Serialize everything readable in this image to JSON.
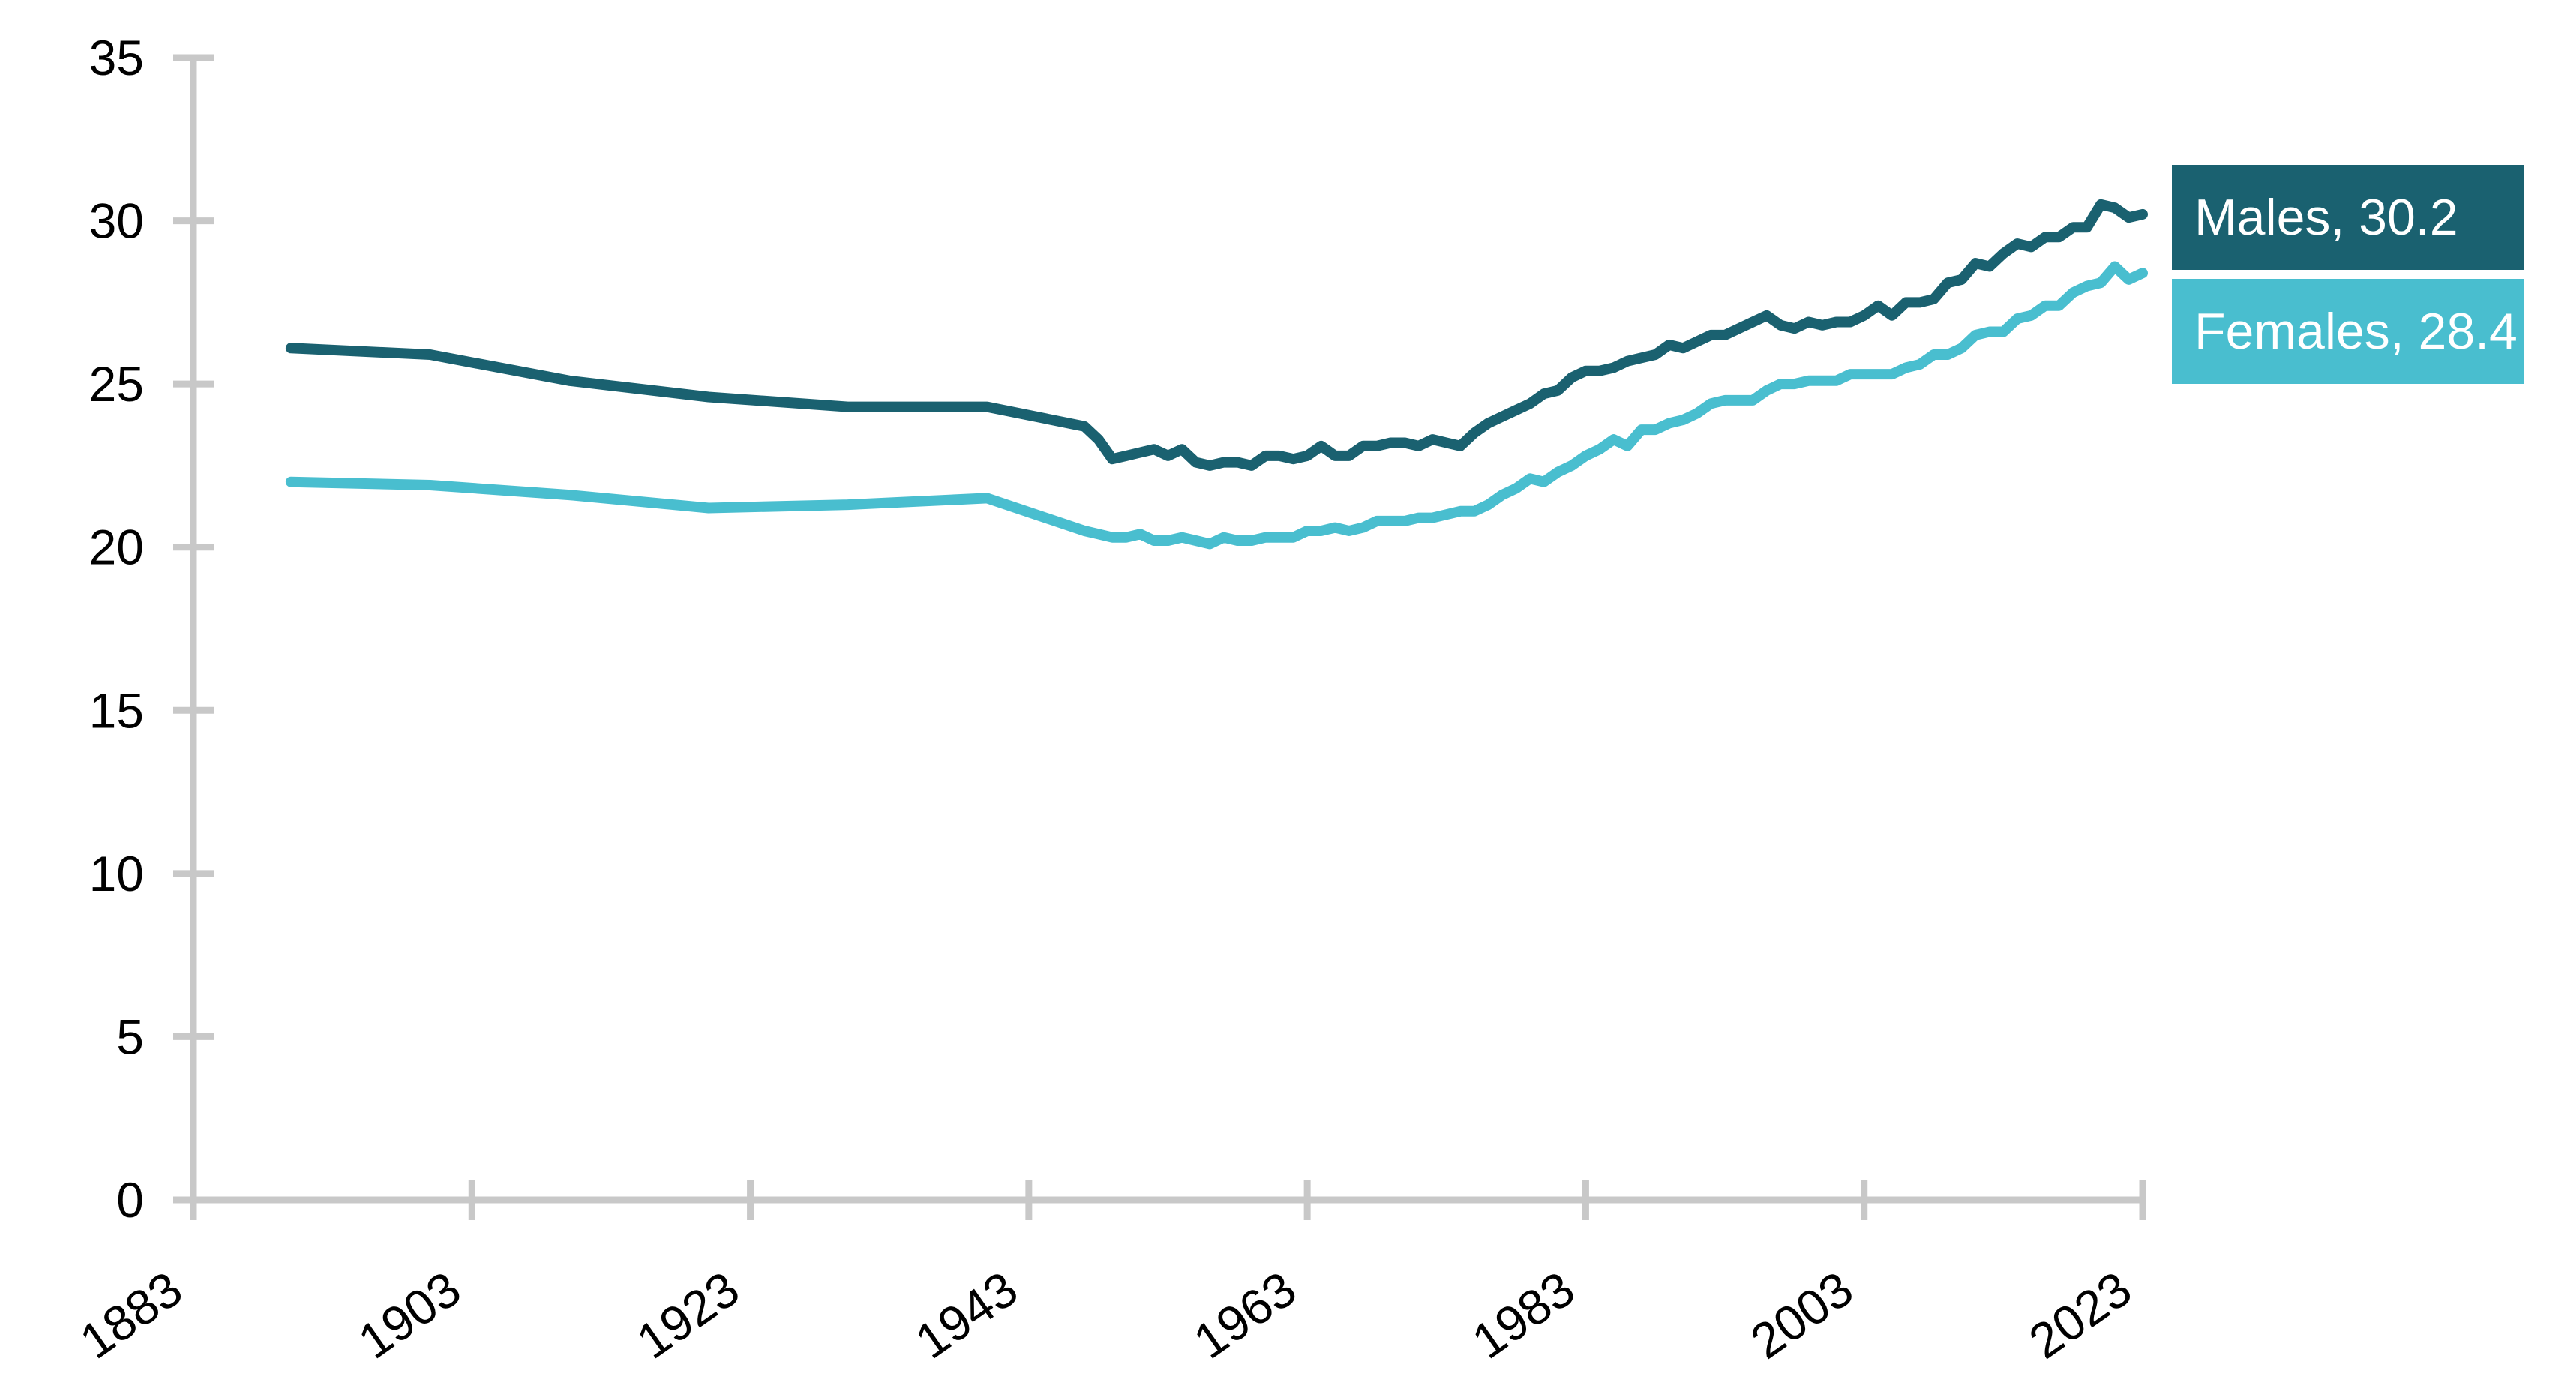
{
  "page": {
    "background_color": "#FFFFFF"
  },
  "chart_data": {
    "type": "line",
    "grid": false,
    "axis_color": "#C8C8C8",
    "tick_label_color": "#000000",
    "legend_position": "right-of-line-ends",
    "xlim": [
      1883,
      2023
    ],
    "ylim": [
      0,
      35
    ],
    "x_tick_labels": [
      "1883",
      "1903",
      "1923",
      "1943",
      "1963",
      "1983",
      "2003",
      "2023"
    ],
    "y_tick_labels": [
      "0",
      "5",
      "10",
      "15",
      "20",
      "25",
      "30",
      "35"
    ],
    "x": [
      1890,
      1900,
      1910,
      1920,
      1930,
      1940,
      1947,
      1948,
      1949,
      1950,
      1951,
      1952,
      1953,
      1954,
      1955,
      1956,
      1957,
      1958,
      1959,
      1960,
      1961,
      1962,
      1963,
      1964,
      1965,
      1966,
      1967,
      1968,
      1969,
      1970,
      1971,
      1972,
      1973,
      1974,
      1975,
      1976,
      1977,
      1978,
      1979,
      1980,
      1981,
      1982,
      1983,
      1984,
      1985,
      1986,
      1987,
      1988,
      1989,
      1990,
      1991,
      1992,
      1993,
      1994,
      1995,
      1996,
      1997,
      1998,
      1999,
      2000,
      2001,
      2002,
      2003,
      2004,
      2005,
      2006,
      2007,
      2008,
      2009,
      2010,
      2011,
      2012,
      2013,
      2014,
      2015,
      2016,
      2017,
      2018,
      2019,
      2020,
      2021,
      2022,
      2023
    ],
    "series": [
      {
        "name": "Males",
        "legend_label": "Males, 30.2",
        "end_value": 30.2,
        "color": "#1A6170",
        "values": [
          26.1,
          25.9,
          25.1,
          24.6,
          24.3,
          24.3,
          23.7,
          23.3,
          22.7,
          22.8,
          22.9,
          23.0,
          22.8,
          23.0,
          22.6,
          22.5,
          22.6,
          22.6,
          22.5,
          22.8,
          22.8,
          22.7,
          22.8,
          23.1,
          22.8,
          22.8,
          23.1,
          23.1,
          23.2,
          23.2,
          23.1,
          23.3,
          23.2,
          23.1,
          23.5,
          23.8,
          24.0,
          24.2,
          24.4,
          24.7,
          24.8,
          25.2,
          25.4,
          25.4,
          25.5,
          25.7,
          25.8,
          25.9,
          26.2,
          26.1,
          26.3,
          26.5,
          26.5,
          26.7,
          26.9,
          27.1,
          26.8,
          26.7,
          26.9,
          26.8,
          26.9,
          26.9,
          27.1,
          27.4,
          27.1,
          27.5,
          27.5,
          27.6,
          28.1,
          28.2,
          28.7,
          28.6,
          29.0,
          29.3,
          29.2,
          29.5,
          29.5,
          29.8,
          29.8,
          30.5,
          30.4,
          30.1,
          30.2
        ]
      },
      {
        "name": "Females",
        "legend_label": "Females, 28.4",
        "end_value": 28.4,
        "color": "#49BECF",
        "values": [
          22.0,
          21.9,
          21.6,
          21.2,
          21.3,
          21.5,
          20.5,
          20.4,
          20.3,
          20.3,
          20.4,
          20.2,
          20.2,
          20.3,
          20.2,
          20.1,
          20.3,
          20.2,
          20.2,
          20.3,
          20.3,
          20.3,
          20.5,
          20.5,
          20.6,
          20.5,
          20.6,
          20.8,
          20.8,
          20.8,
          20.9,
          20.9,
          21.0,
          21.1,
          21.1,
          21.3,
          21.6,
          21.8,
          22.1,
          22.0,
          22.3,
          22.5,
          22.8,
          23.0,
          23.3,
          23.1,
          23.6,
          23.6,
          23.8,
          23.9,
          24.1,
          24.4,
          24.5,
          24.5,
          24.5,
          24.8,
          25.0,
          25.0,
          25.1,
          25.1,
          25.1,
          25.3,
          25.3,
          25.3,
          25.3,
          25.5,
          25.6,
          25.9,
          25.9,
          26.1,
          26.5,
          26.6,
          26.6,
          27.0,
          27.1,
          27.4,
          27.4,
          27.8,
          28.0,
          28.1,
          28.6,
          28.2,
          28.4
        ]
      }
    ]
  }
}
